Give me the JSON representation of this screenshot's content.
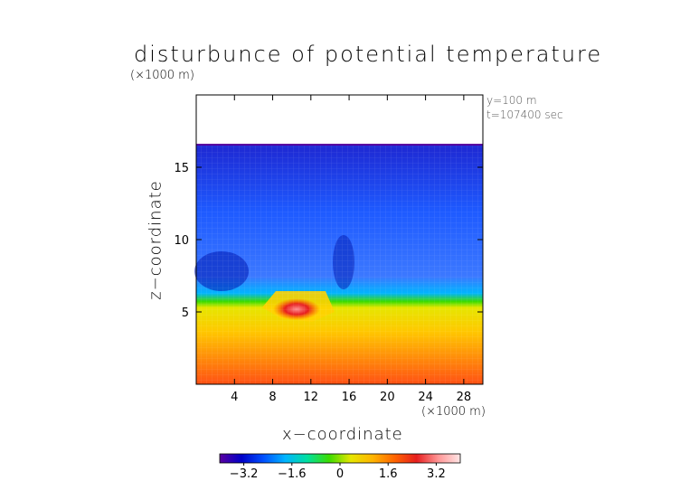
{
  "chart_data": {
    "type": "heatmap",
    "title": "disturbunce of potential temperature",
    "xlabel": "x−coordinate",
    "ylabel": "z−coordinate",
    "x_unit": "(×1000 m)",
    "z_unit": "(×1000 m)",
    "annotations": [
      "y=100 m",
      "t=107400 sec"
    ],
    "xlim": [
      0,
      30
    ],
    "zlim": [
      0,
      20
    ],
    "x_ticks": [
      4,
      8,
      12,
      16,
      20,
      24,
      28
    ],
    "z_ticks": [
      5,
      10,
      15
    ],
    "colorbar": {
      "range": [
        -4,
        4
      ],
      "ticks": [
        -3.2,
        -1.6,
        0,
        1.6,
        3.2
      ],
      "tick_labels": [
        "−3.2",
        "−1.6",
        "0",
        "1.6",
        "3.2"
      ],
      "colormap": [
        "#5a00a0",
        "#0000c8",
        "#0050ff",
        "#00b4ff",
        "#00e0a0",
        "#3cdc00",
        "#e6e600",
        "#ffb400",
        "#ff6400",
        "#e61e1e",
        "#ff9696",
        "#ffe6e6"
      ]
    },
    "model_top_z": 16.5,
    "field_summary": {
      "upper_layer_z_range": [
        6,
        16.5
      ],
      "upper_layer_value": -2.4,
      "transition_z": 5.7,
      "lower_layer_value_near_surface": 2.2,
      "warm_anomaly": {
        "x": 10,
        "z": 5.1,
        "value": 3.4
      }
    }
  }
}
